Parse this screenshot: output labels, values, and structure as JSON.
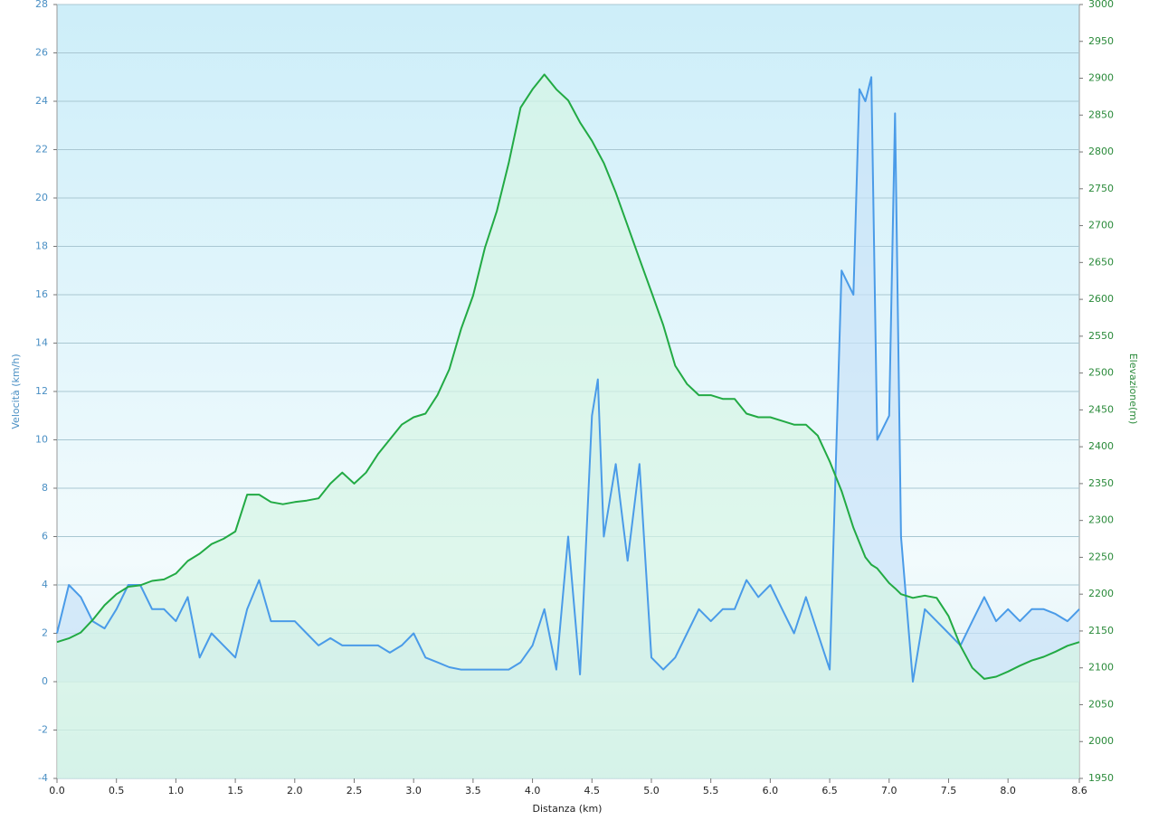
{
  "chart_data": {
    "type": "line",
    "x_label": "Distanza  (km)",
    "y_label": "Velocità (km/h)",
    "y2_label": "Elevazione(m)",
    "x": [
      0,
      0.1,
      0.2,
      0.3,
      0.4,
      0.5,
      0.6,
      0.7,
      0.8,
      0.9,
      1.0,
      1.1,
      1.2,
      1.3,
      1.4,
      1.5,
      1.6,
      1.7,
      1.8,
      1.9,
      2.0,
      2.1,
      2.2,
      2.3,
      2.4,
      2.5,
      2.6,
      2.7,
      2.8,
      2.9,
      3.0,
      3.1,
      3.2,
      3.3,
      3.4,
      3.5,
      3.6,
      3.7,
      3.8,
      3.9,
      4.0,
      4.1,
      4.2,
      4.3,
      4.4,
      4.5,
      4.55,
      4.6,
      4.7,
      4.8,
      4.9,
      5.0,
      5.1,
      5.2,
      5.3,
      5.4,
      5.5,
      5.6,
      5.7,
      5.8,
      5.9,
      6.0,
      6.1,
      6.2,
      6.3,
      6.4,
      6.5,
      6.6,
      6.7,
      6.75,
      6.8,
      6.85,
      6.9,
      7.0,
      7.05,
      7.1,
      7.2,
      7.3,
      7.4,
      7.5,
      7.6,
      7.7,
      7.8,
      7.9,
      8.0,
      8.1,
      8.2,
      8.3,
      8.4,
      8.5,
      8.6
    ],
    "series": [
      {
        "name": "Velocità",
        "color": "#4a9be8",
        "fill": "#c9e2f8",
        "axis": "y",
        "values": [
          2,
          4,
          3.5,
          2.5,
          2.2,
          3,
          4,
          4,
          3,
          3,
          2.5,
          3.5,
          1,
          2,
          1.5,
          1,
          3,
          4.2,
          2.5,
          2.5,
          2.5,
          2,
          1.5,
          1.8,
          1.5,
          1.5,
          1.5,
          1.5,
          1.2,
          1.5,
          2,
          1,
          0.8,
          0.6,
          0.5,
          0.5,
          0.5,
          0.5,
          0.5,
          0.8,
          1.5,
          3,
          0.5,
          6,
          0.3,
          11,
          12.5,
          6,
          9,
          5,
          9,
          1,
          0.5,
          1,
          2,
          3,
          2.5,
          3,
          3,
          4.2,
          3.5,
          4,
          3,
          2,
          3.5,
          2,
          0.5,
          17,
          16,
          24.5,
          24,
          25,
          10,
          11,
          23.5,
          6,
          0,
          3,
          2.5,
          2,
          1.5,
          2.5,
          3.5,
          2.5,
          3,
          2.5,
          3,
          3,
          2.8,
          2.5,
          3
        ]
      },
      {
        "name": "Elevazione",
        "color": "#22aa44",
        "fill": "#d6f5e4",
        "axis": "y2",
        "values": [
          2135,
          2140,
          2148,
          2165,
          2185,
          2200,
          2210,
          2212,
          2218,
          2220,
          2228,
          2245,
          2255,
          2268,
          2275,
          2285,
          2335,
          2335,
          2325,
          2322,
          2325,
          2327,
          2330,
          2350,
          2365,
          2350,
          2365,
          2390,
          2410,
          2430,
          2440,
          2445,
          2470,
          2505,
          2560,
          2605,
          2670,
          2720,
          2785,
          2860,
          2885,
          2905,
          2885,
          2870,
          2840,
          2815,
          2800,
          2785,
          2745,
          2700,
          2655,
          2610,
          2565,
          2510,
          2485,
          2470,
          2470,
          2465,
          2465,
          2445,
          2440,
          2440,
          2435,
          2430,
          2430,
          2415,
          2380,
          2340,
          2290,
          2270,
          2250,
          2240,
          2235,
          2215,
          2208,
          2200,
          2195,
          2198,
          2195,
          2170,
          2130,
          2100,
          2085,
          2088,
          2095,
          2103,
          2110,
          2115,
          2122,
          2130,
          2135
        ]
      }
    ],
    "xlim": [
      0,
      8.6
    ],
    "xticks": [
      {
        "value": 0,
        "label": "0.0"
      },
      0.5,
      {
        "value": 1,
        "label": "1.0"
      },
      1.5,
      {
        "value": 2,
        "label": "2.0"
      },
      2.5,
      {
        "value": 3,
        "label": "3.0"
      },
      3.5,
      {
        "value": 4,
        "label": "4.0"
      },
      4.5,
      {
        "value": 5,
        "label": "5.0"
      },
      5.5,
      {
        "value": 6,
        "label": "6.0"
      },
      6.5,
      {
        "value": 7,
        "label": "7.0"
      },
      7.5,
      {
        "value": 8,
        "label": "8.0"
      },
      8.6
    ],
    "ylim": [
      -4,
      28
    ],
    "yticks": [
      -4,
      -2,
      0,
      2,
      4,
      6,
      8,
      10,
      12,
      14,
      16,
      18,
      20,
      22,
      24,
      26,
      28
    ],
    "y2lim": [
      1950,
      3000
    ],
    "y2ticks": [
      1950,
      2000,
      2050,
      2100,
      2150,
      2200,
      2250,
      2300,
      2350,
      2400,
      2450,
      2500,
      2550,
      2600,
      2650,
      2700,
      2750,
      2800,
      2850,
      2900,
      2950,
      3000
    ],
    "grid": true
  }
}
